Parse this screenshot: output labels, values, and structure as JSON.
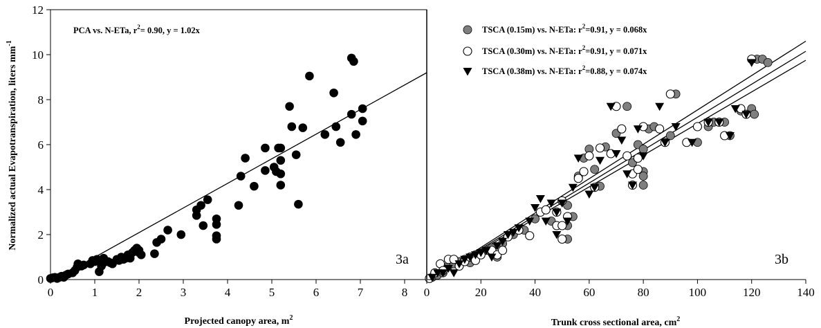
{
  "chart_data": [
    {
      "type": "scatter",
      "panel_label": "3a",
      "xlabel": "Projected canopy area, m",
      "xlabel_sup": "2",
      "ylabel": "Normalized actual Evapotranspiration, liters mm",
      "ylabel_sup": "-1",
      "xlim": [
        0,
        8.5
      ],
      "ylim": [
        0,
        12
      ],
      "x_ticks": [
        "0",
        "1",
        "2",
        "3",
        "4",
        "5",
        "6",
        "7",
        "8"
      ],
      "y_ticks": [
        "0",
        "2",
        "4",
        "6",
        "8",
        "10",
        "12"
      ],
      "grid": false,
      "legend_text": {
        "a": "PCA vs. N-ETa, r",
        "sup": "2",
        "b": "= 0.90, y = 1.02x"
      },
      "fit_line": [
        [
          0,
          -0.1
        ],
        [
          8.5,
          9.2
        ]
      ],
      "series": [
        {
          "marker": "circle-filled",
          "points": [
            [
              0,
              0.05
            ],
            [
              0.05,
              0.08
            ],
            [
              0.1,
              0.1
            ],
            [
              0.15,
              0.05
            ],
            [
              0.2,
              0.1
            ],
            [
              0.25,
              0.15
            ],
            [
              0.3,
              0.1
            ],
            [
              0.35,
              0.2
            ],
            [
              0.4,
              0.25
            ],
            [
              0.5,
              0.3
            ],
            [
              0.55,
              0.4
            ],
            [
              0.6,
              0.55
            ],
            [
              0.62,
              0.7
            ],
            [
              0.7,
              0.6
            ],
            [
              0.75,
              0.65
            ],
            [
              0.9,
              0.7
            ],
            [
              0.95,
              0.85
            ],
            [
              1.0,
              0.8
            ],
            [
              1.05,
              0.9
            ],
            [
              1.1,
              0.85
            ],
            [
              1.1,
              0.35
            ],
            [
              1.15,
              0.6
            ],
            [
              1.2,
              0.95
            ],
            [
              1.2,
              0.75
            ],
            [
              1.3,
              0.8
            ],
            [
              1.35,
              0.75
            ],
            [
              1.4,
              0.7
            ],
            [
              1.5,
              0.9
            ],
            [
              1.55,
              0.85
            ],
            [
              1.6,
              1.0
            ],
            [
              1.65,
              0.9
            ],
            [
              1.7,
              0.95
            ],
            [
              1.75,
              1.1
            ],
            [
              1.8,
              0.95
            ],
            [
              1.85,
              1.2
            ],
            [
              1.9,
              1.3
            ],
            [
              1.95,
              1.4
            ],
            [
              2.0,
              1.2
            ],
            [
              2.0,
              1.3
            ],
            [
              2.05,
              1.1
            ],
            [
              2.35,
              1.15
            ],
            [
              2.4,
              1.65
            ],
            [
              2.5,
              1.8
            ],
            [
              2.65,
              2.2
            ],
            [
              2.95,
              2.0
            ],
            [
              3.3,
              2.85
            ],
            [
              3.3,
              3.1
            ],
            [
              3.4,
              3.3
            ],
            [
              3.45,
              2.4
            ],
            [
              3.55,
              3.55
            ],
            [
              3.75,
              2.7
            ],
            [
              3.75,
              2.45
            ],
            [
              3.75,
              1.95
            ],
            [
              3.75,
              1.8
            ],
            [
              4.25,
              3.3
            ],
            [
              4.3,
              4.6
            ],
            [
              4.4,
              5.4
            ],
            [
              4.6,
              4.15
            ],
            [
              4.85,
              5.85
            ],
            [
              4.85,
              4.85
            ],
            [
              5.05,
              5.0
            ],
            [
              5.1,
              4.8
            ],
            [
              5.15,
              5.85
            ],
            [
              5.2,
              5.85
            ],
            [
              5.2,
              5.3
            ],
            [
              5.2,
              4.2
            ],
            [
              5.2,
              4.7
            ],
            [
              5.4,
              7.7
            ],
            [
              5.45,
              6.8
            ],
            [
              5.55,
              5.55
            ],
            [
              5.6,
              3.35
            ],
            [
              5.7,
              6.75
            ],
            [
              5.85,
              9.05
            ],
            [
              6.2,
              6.45
            ],
            [
              6.4,
              8.3
            ],
            [
              6.45,
              6.8
            ],
            [
              6.55,
              6.1
            ],
            [
              6.8,
              7.35
            ],
            [
              6.8,
              9.85
            ],
            [
              6.85,
              9.7
            ],
            [
              6.9,
              6.45
            ],
            [
              7.05,
              7.05
            ],
            [
              7.05,
              7.6
            ]
          ]
        }
      ]
    },
    {
      "type": "scatter",
      "panel_label": "3b",
      "xlabel": "Trunk cross sectional area, cm",
      "xlabel_sup": "2",
      "xlim": [
        0,
        140
      ],
      "ylim": [
        0,
        12
      ],
      "x_ticks": [
        "0",
        "20",
        "40",
        "60",
        "80",
        "100",
        "120",
        "140"
      ],
      "grid": false,
      "legend_placement": "top-left",
      "fit_lines": [
        [
          [
            0,
            -0.1
          ],
          [
            140,
            9.75
          ]
        ],
        [
          [
            0,
            -0.1
          ],
          [
            140,
            10.15
          ]
        ],
        [
          [
            0,
            -0.1
          ],
          [
            140,
            10.6
          ]
        ]
      ],
      "series": [
        {
          "name_a": "TSCA (0.15m) vs. N-ETa: r",
          "name_sup": "2",
          "name_b": "=0.91,  y = 0.068x",
          "marker": "circle-gray",
          "color": "#7f7f7f",
          "points": [
            [
              2,
              0.1
            ],
            [
              4,
              0.2
            ],
            [
              6,
              0.3
            ],
            [
              8,
              0.6
            ],
            [
              10,
              0.7
            ],
            [
              12,
              0.8
            ],
            [
              14,
              0.9
            ],
            [
              16,
              0.75
            ],
            [
              18,
              1.1
            ],
            [
              20,
              1.2
            ],
            [
              22,
              1.3
            ],
            [
              24,
              1.4
            ],
            [
              26,
              1.0
            ],
            [
              28,
              1.6
            ],
            [
              32,
              2.0
            ],
            [
              36,
              2.2
            ],
            [
              40,
              2.7
            ],
            [
              44,
              3.1
            ],
            [
              46,
              2.6
            ],
            [
              50,
              3.5
            ],
            [
              52,
              3.3
            ],
            [
              52,
              2.4
            ],
            [
              52,
              1.8
            ],
            [
              54,
              2.8
            ],
            [
              56,
              4.6
            ],
            [
              58,
              5.4
            ],
            [
              60,
              5.8
            ],
            [
              62,
              4.9
            ],
            [
              64,
              4.15
            ],
            [
              66,
              5.9
            ],
            [
              70,
              6.5
            ],
            [
              72,
              6.7
            ],
            [
              74,
              7.7
            ],
            [
              76,
              5.2
            ],
            [
              78,
              6.0
            ],
            [
              80,
              5.8
            ],
            [
              80,
              4.8
            ],
            [
              80,
              4.6
            ],
            [
              80,
              4.2
            ],
            [
              82,
              6.7
            ],
            [
              84,
              6.8
            ],
            [
              90,
              6.4
            ],
            [
              92,
              8.25
            ],
            [
              100,
              6.1
            ],
            [
              104,
              6.8
            ],
            [
              106,
              7.0
            ],
            [
              110,
              7.0
            ],
            [
              112,
              6.4
            ],
            [
              116,
              7.5
            ],
            [
              120,
              7.6
            ],
            [
              121,
              7.35
            ],
            [
              122,
              9.8
            ],
            [
              124,
              9.8
            ],
            [
              126,
              9.65
            ]
          ]
        },
        {
          "name_a": "TSCA (0.30m) vs. N-ETa: r",
          "name_sup": "2",
          "name_b": "=0.91, y = 0.071x",
          "marker": "circle-open",
          "color": "#000000",
          "points": [
            [
              1,
              0.05
            ],
            [
              3,
              0.3
            ],
            [
              5,
              0.7
            ],
            [
              6,
              0.4
            ],
            [
              8,
              0.9
            ],
            [
              10,
              0.9
            ],
            [
              12,
              0.6
            ],
            [
              14,
              0.8
            ],
            [
              16,
              1.0
            ],
            [
              18,
              0.85
            ],
            [
              20,
              1.1
            ],
            [
              24,
              1.3
            ],
            [
              26,
              1.1
            ],
            [
              28,
              1.3
            ],
            [
              30,
              1.9
            ],
            [
              34,
              2.2
            ],
            [
              38,
              1.95
            ],
            [
              42,
              3.0
            ],
            [
              44,
              3.1
            ],
            [
              48,
              2.4
            ],
            [
              48,
              3.0
            ],
            [
              50,
              3.5
            ],
            [
              50,
              2.4
            ],
            [
              50,
              1.8
            ],
            [
              52,
              2.8
            ],
            [
              56,
              4.5
            ],
            [
              58,
              4.8
            ],
            [
              60,
              5.5
            ],
            [
              62,
              4.1
            ],
            [
              64,
              5.85
            ],
            [
              68,
              5.6
            ],
            [
              70,
              7.7
            ],
            [
              72,
              6.7
            ],
            [
              74,
              5.5
            ],
            [
              76,
              4.7
            ],
            [
              76,
              4.2
            ],
            [
              78,
              5.4
            ],
            [
              78,
              4.9
            ],
            [
              80,
              6.8
            ],
            [
              86,
              6.7
            ],
            [
              88,
              6.1
            ],
            [
              90,
              8.25
            ],
            [
              96,
              6.1
            ],
            [
              100,
              6.8
            ],
            [
              104,
              7.0
            ],
            [
              108,
              7.0
            ],
            [
              110,
              6.4
            ],
            [
              116,
              7.6
            ],
            [
              118,
              7.35
            ],
            [
              120,
              9.8
            ]
          ]
        },
        {
          "name_a": "TSCA (0.38m) vs. N-ETa: r",
          "name_sup": "2",
          "name_b": "=0.88, y = 0.074x",
          "marker": "triangle-down",
          "color": "#000000",
          "points": [
            [
              2,
              0.1
            ],
            [
              4,
              0.3
            ],
            [
              6,
              0.3
            ],
            [
              8,
              0.5
            ],
            [
              10,
              0.3
            ],
            [
              12,
              0.7
            ],
            [
              14,
              0.9
            ],
            [
              16,
              1.0
            ],
            [
              18,
              1.1
            ],
            [
              20,
              1.2
            ],
            [
              22,
              1.3
            ],
            [
              24,
              1.0
            ],
            [
              26,
              1.5
            ],
            [
              28,
              1.7
            ],
            [
              30,
              2.0
            ],
            [
              32,
              2.1
            ],
            [
              34,
              2.3
            ],
            [
              38,
              2.6
            ],
            [
              40,
              3.2
            ],
            [
              42,
              3.6
            ],
            [
              44,
              2.6
            ],
            [
              46,
              3.4
            ],
            [
              48,
              2.0
            ],
            [
              48,
              3.0
            ],
            [
              50,
              3.4
            ],
            [
              52,
              2.6
            ],
            [
              54,
              4.1
            ],
            [
              56,
              5.4
            ],
            [
              60,
              3.8
            ],
            [
              62,
              4.1
            ],
            [
              64,
              5.3
            ],
            [
              68,
              7.7
            ],
            [
              70,
              5.6
            ],
            [
              72,
              6.2
            ],
            [
              74,
              4.7
            ],
            [
              76,
              4.2
            ],
            [
              78,
              6.7
            ],
            [
              80,
              5.5
            ],
            [
              86,
              7.7
            ],
            [
              88,
              6.1
            ],
            [
              92,
              6.8
            ],
            [
              98,
              6.1
            ],
            [
              104,
              7.0
            ],
            [
              108,
              7.0
            ],
            [
              112,
              6.4
            ],
            [
              114,
              7.6
            ],
            [
              118,
              7.35
            ],
            [
              120,
              9.65
            ]
          ]
        }
      ]
    }
  ]
}
